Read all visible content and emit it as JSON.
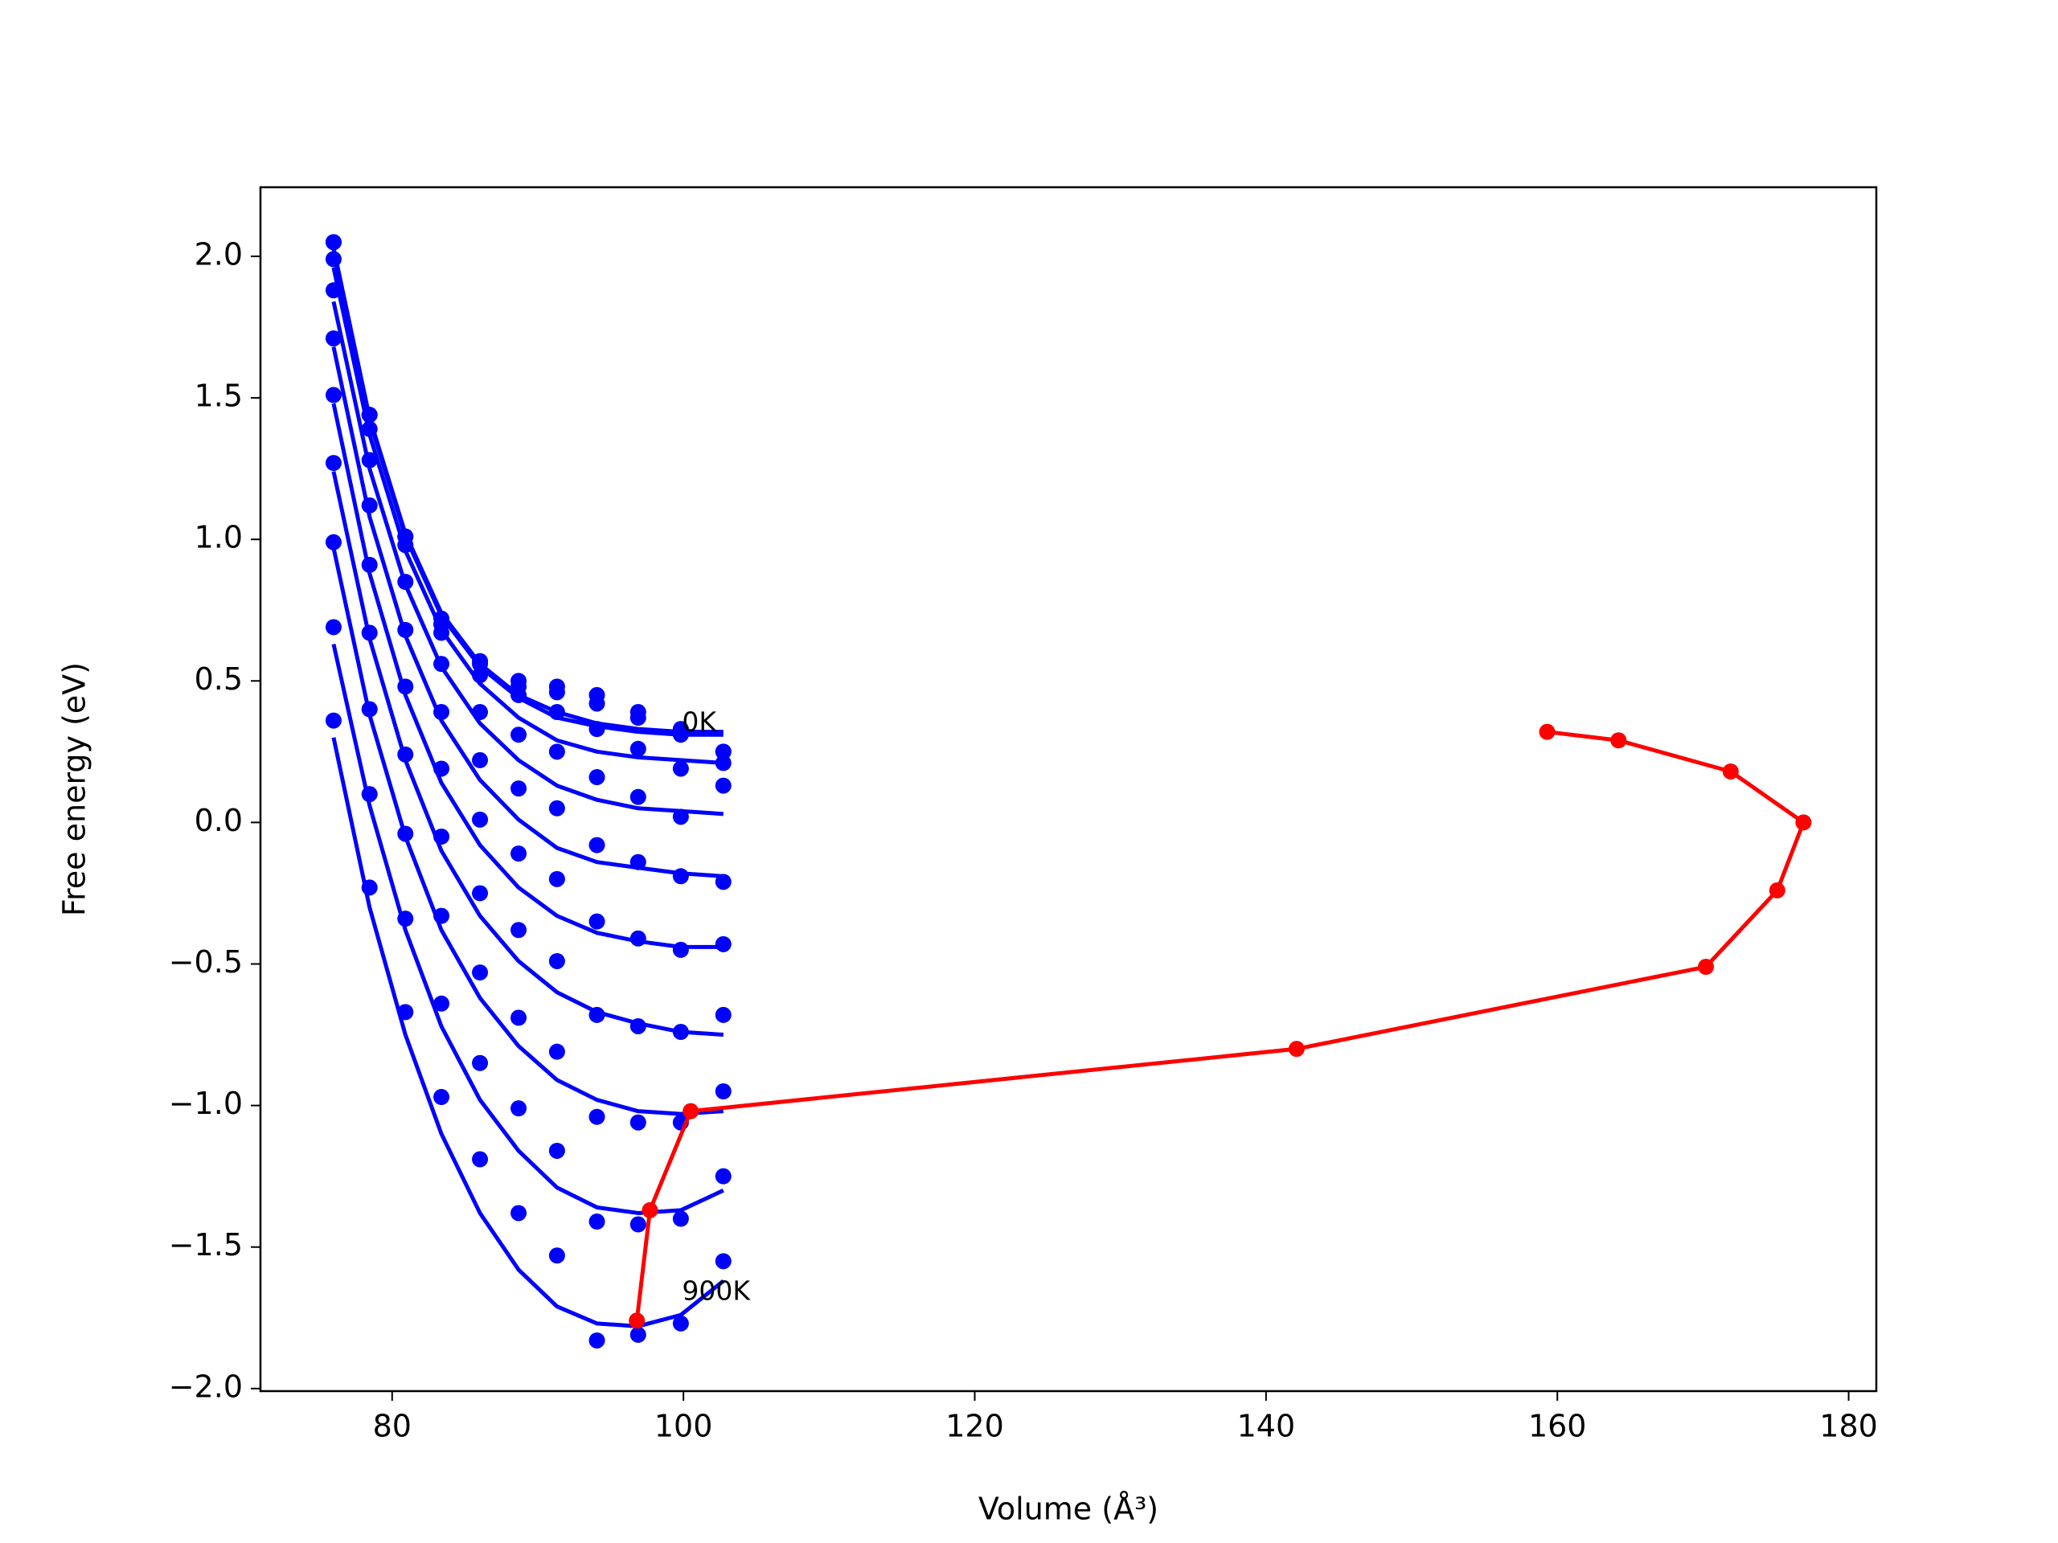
{
  "chart_data": {
    "type": "line",
    "xlabel": "Volume (Å³)",
    "ylabel": "Free energy (eV)",
    "xlim": [
      70.96,
      181.9
    ],
    "ylim": [
      -2.009,
      2.244
    ],
    "xticks": [
      80,
      100,
      120,
      140,
      160,
      180
    ],
    "yticks": [
      {
        "value": -2.0,
        "label": "−2.0"
      },
      {
        "value": -1.5,
        "label": "−1.5"
      },
      {
        "value": -1.0,
        "label": "−1.0"
      },
      {
        "value": -0.5,
        "label": "−0.5"
      },
      {
        "value": 0.0,
        "label": "0.0"
      },
      {
        "value": 0.5,
        "label": "0.5"
      },
      {
        "value": 1.0,
        "label": "1.0"
      },
      {
        "value": 1.5,
        "label": "1.5"
      },
      {
        "value": 2.0,
        "label": "2.0"
      }
    ],
    "grid": false,
    "x": [
      75.98,
      78.45,
      80.91,
      83.38,
      86.03,
      88.68,
      91.32,
      94.06,
      96.89,
      99.82,
      102.74
    ],
    "series": [
      {
        "style": "markers",
        "color": "#0000ff",
        "values": [
          2.05,
          1.44,
          1.01,
          0.72,
          0.57,
          0.5,
          0.48,
          0.45,
          0.39,
          0.33,
          0.25
        ]
      },
      {
        "style": "markers",
        "color": "#0000ff",
        "values": [
          2.05,
          1.44,
          1.01,
          0.7,
          0.56,
          0.48,
          0.46,
          0.42,
          0.37,
          0.31,
          0.25
        ]
      },
      {
        "style": "markers",
        "color": "#0000ff",
        "values": [
          1.99,
          1.39,
          0.98,
          0.67,
          0.52,
          0.45,
          0.39,
          0.33,
          0.26,
          0.19,
          0.21
        ]
      },
      {
        "style": "markers",
        "color": "#0000ff",
        "values": [
          1.88,
          1.28,
          0.85,
          0.56,
          0.39,
          0.31,
          0.25,
          0.16,
          0.09,
          0.02,
          0.13
        ]
      },
      {
        "style": "markers",
        "color": "#0000ff",
        "values": [
          1.71,
          1.12,
          0.68,
          0.39,
          0.22,
          0.12,
          0.05,
          -0.08,
          -0.14,
          -0.19,
          -0.21
        ]
      },
      {
        "style": "markers",
        "color": "#0000ff",
        "values": [
          1.51,
          0.91,
          0.48,
          0.19,
          0.01,
          -0.11,
          -0.2,
          -0.35,
          -0.41,
          -0.45,
          -0.43
        ]
      },
      {
        "style": "markers",
        "color": "#0000ff",
        "values": [
          1.27,
          0.67,
          0.24,
          -0.05,
          -0.25,
          -0.38,
          -0.49,
          -0.68,
          -0.72,
          -0.74,
          -0.68
        ]
      },
      {
        "style": "markers",
        "color": "#0000ff",
        "values": [
          0.99,
          0.4,
          -0.04,
          -0.33,
          -0.53,
          -0.69,
          -0.81,
          -1.04,
          -1.06,
          -1.06,
          -0.95
        ]
      },
      {
        "style": "markers",
        "color": "#0000ff",
        "values": [
          0.69,
          0.1,
          -0.34,
          -0.64,
          -0.85,
          -1.01,
          -1.16,
          -1.41,
          -1.42,
          -1.4,
          -1.25
        ]
      },
      {
        "style": "markers",
        "color": "#0000ff",
        "values": [
          0.36,
          -0.23,
          -0.67,
          -0.97,
          -1.19,
          -1.38,
          -1.53,
          -1.83,
          -1.81,
          -1.77,
          -1.55
        ]
      },
      {
        "style": "line",
        "color": "#0000ff",
        "values": [
          2.03,
          1.43,
          1.02,
          0.74,
          0.56,
          0.45,
          0.39,
          0.35,
          0.33,
          0.32,
          0.32
        ]
      },
      {
        "style": "line",
        "color": "#0000ff",
        "values": [
          2.02,
          1.42,
          1.01,
          0.73,
          0.55,
          0.44,
          0.37,
          0.34,
          0.32,
          0.31,
          0.31
        ]
      },
      {
        "style": "line",
        "color": "#0000ff",
        "values": [
          1.96,
          1.37,
          0.96,
          0.68,
          0.49,
          0.37,
          0.29,
          0.25,
          0.23,
          0.22,
          0.21
        ]
      },
      {
        "style": "line",
        "color": "#0000ff",
        "values": [
          1.84,
          1.25,
          0.84,
          0.55,
          0.35,
          0.22,
          0.13,
          0.08,
          0.05,
          0.04,
          0.03
        ]
      },
      {
        "style": "line",
        "color": "#0000ff",
        "values": [
          1.68,
          1.08,
          0.66,
          0.36,
          0.15,
          0.01,
          -0.09,
          -0.14,
          -0.16,
          -0.18,
          -0.19
        ]
      },
      {
        "style": "line",
        "color": "#0000ff",
        "values": [
          1.48,
          0.88,
          0.45,
          0.14,
          -0.08,
          -0.23,
          -0.33,
          -0.39,
          -0.42,
          -0.44,
          -0.44
        ]
      },
      {
        "style": "line",
        "color": "#0000ff",
        "values": [
          1.24,
          0.65,
          0.22,
          -0.1,
          -0.33,
          -0.49,
          -0.6,
          -0.67,
          -0.71,
          -0.74,
          -0.75
        ]
      },
      {
        "style": "line",
        "color": "#0000ff",
        "values": [
          0.97,
          0.38,
          -0.05,
          -0.38,
          -0.62,
          -0.79,
          -0.91,
          -0.98,
          -1.02,
          -1.03,
          -1.02
        ]
      },
      {
        "style": "line",
        "color": "#0000ff",
        "values": [
          0.63,
          0.06,
          -0.38,
          -0.72,
          -0.98,
          -1.16,
          -1.29,
          -1.36,
          -1.38,
          -1.37,
          -1.3
        ]
      },
      {
        "style": "line",
        "color": "#0000ff",
        "values": [
          0.3,
          -0.3,
          -0.75,
          -1.1,
          -1.38,
          -1.58,
          -1.71,
          -1.77,
          -1.78,
          -1.74,
          -1.62
        ]
      },
      {
        "style": "line+markers",
        "color": "#ff0000",
        "x": [
          96.8,
          97.7,
          100.5,
          142.1,
          170.2,
          175.1,
          176.9,
          171.9,
          164.2,
          159.3
        ],
        "values": [
          -1.76,
          -1.37,
          -1.02,
          -0.8,
          -0.51,
          -0.24,
          0.0,
          0.18,
          0.29,
          0.32
        ]
      }
    ],
    "annotations": [
      {
        "text": "0K",
        "x": 99.9,
        "y": 0.35
      },
      {
        "text": "900K",
        "x": 99.9,
        "y": -1.66
      }
    ]
  }
}
